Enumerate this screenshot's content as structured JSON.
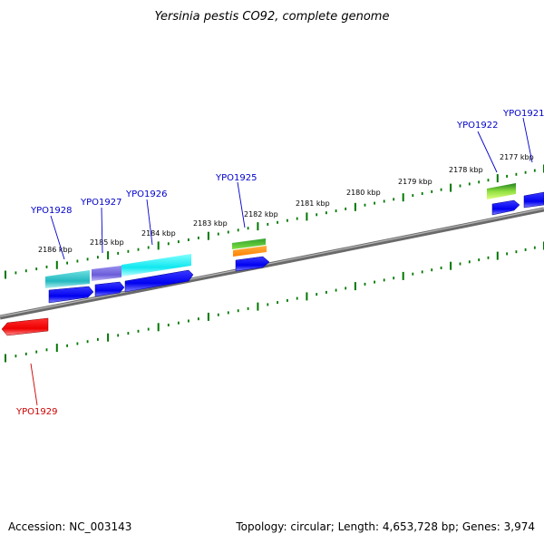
{
  "title": "Yersinia pestis CO92, complete genome",
  "footer": {
    "accession": "Accession: NC_003143",
    "stats": "Topology: circular; Length: 4,653,728 bp; Genes: 3,974"
  },
  "scale_labels": [
    "2186 kbp",
    "2185 kbp",
    "2184 kbp",
    "2183 kbp",
    "2182 kbp",
    "2181 kbp",
    "2180 kbp",
    "2179 kbp",
    "2178 kbp",
    "2177 kbp"
  ],
  "gene_labels": [
    {
      "name": "YPO1928",
      "color": "#0000cc"
    },
    {
      "name": "YPO1927",
      "color": "#0000cc"
    },
    {
      "name": "YPO1926",
      "color": "#0000cc"
    },
    {
      "name": "YPO1925",
      "color": "#0000cc"
    },
    {
      "name": "YPO1922",
      "color": "#0000cc"
    },
    {
      "name": "YPO1921",
      "color": "#0000cc"
    },
    {
      "name": "YPO1929",
      "color": "#cc0000"
    }
  ],
  "colors": {
    "forward_gene": "#0000ff",
    "reverse_gene": "#ff0000",
    "backbone": "#808080",
    "ticks": "#007700"
  }
}
